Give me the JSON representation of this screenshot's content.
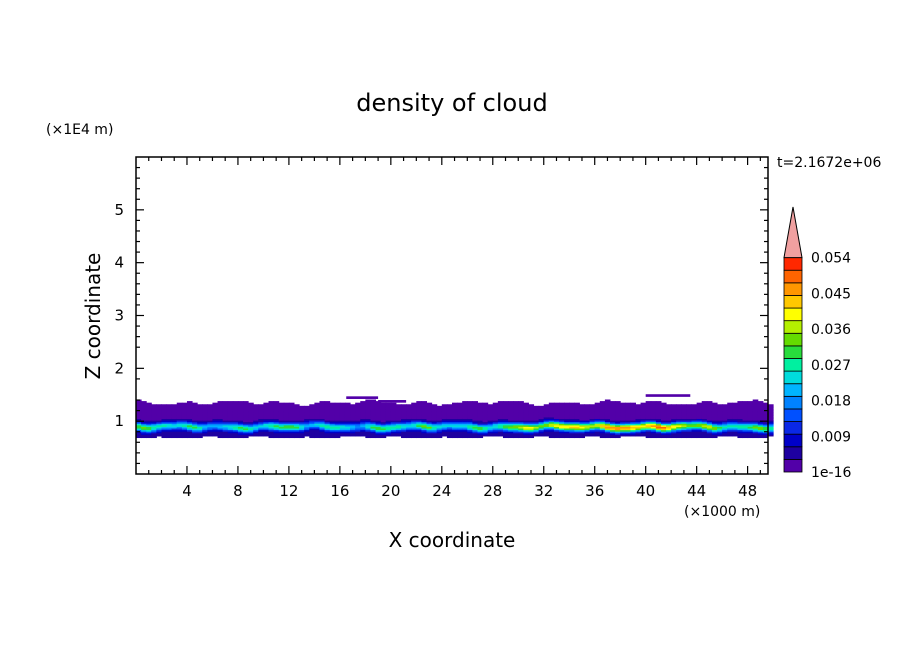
{
  "chart_data": {
    "type": "heatmap",
    "title": "density of cloud",
    "xlabel": "X coordinate",
    "ylabel": "Z coordinate",
    "x_unit": "(×1000 m)",
    "y_unit": "(×1E4 m)",
    "time_label": "t=2.1672e+06",
    "xlim": [
      0,
      49.6
    ],
    "ylim": [
      0,
      6
    ],
    "x_ticks": [
      4,
      8,
      12,
      16,
      20,
      24,
      28,
      32,
      36,
      40,
      44,
      48
    ],
    "x_tick_labels": [
      "4",
      "8",
      "12",
      "16",
      "20",
      "24",
      "28",
      "32",
      "36",
      "40",
      "44",
      "48"
    ],
    "y_ticks": [
      1,
      2,
      3,
      4,
      5
    ],
    "y_tick_labels": [
      "1",
      "2",
      "3",
      "4",
      "5"
    ],
    "colorbar": {
      "levels": 17,
      "colors": [
        "#5200a8",
        "#1e00a0",
        "#0000c8",
        "#0a28e6",
        "#0050ff",
        "#0082ff",
        "#00b4ff",
        "#00dcdc",
        "#00f0a0",
        "#28dc3c",
        "#64dc00",
        "#b4f000",
        "#ffff00",
        "#ffc800",
        "#ff9600",
        "#ff6400",
        "#ff2800",
        "#f0a0a0"
      ],
      "labels": [
        "1e-16",
        "0.009",
        "0.018",
        "0.027",
        "0.036",
        "0.045",
        "0.054"
      ],
      "label_values": [
        0,
        0.009,
        0.018,
        0.027,
        0.036,
        0.045,
        0.054
      ],
      "overflow_color": "#f0a0a0"
    },
    "field": {
      "cloud_base_z": 0.7,
      "cloud_top_z": 1.35,
      "core_z": 0.9,
      "peak_x": 38,
      "peak_value": 0.045
    }
  }
}
